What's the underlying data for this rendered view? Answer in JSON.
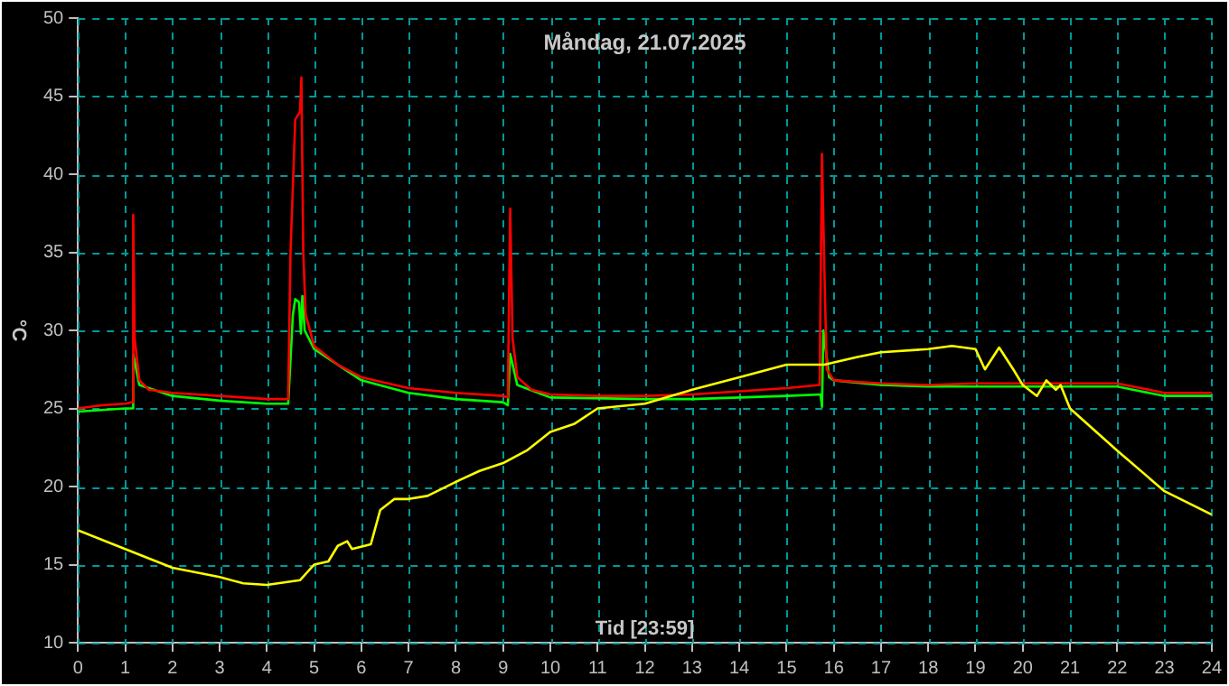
{
  "chart_data": {
    "type": "line",
    "title": "Måndag, 21.07.2025",
    "xlabel": "Tid [23:59]",
    "ylabel": "°C",
    "xlim": [
      0,
      24
    ],
    "xticks": [
      0,
      1,
      2,
      3,
      4,
      5,
      6,
      7,
      8,
      9,
      10,
      11,
      12,
      13,
      14,
      15,
      16,
      17,
      18,
      19,
      20,
      21,
      22,
      23,
      24
    ],
    "ylim": [
      10,
      50
    ],
    "yticks": [
      10,
      15,
      20,
      25,
      30,
      35,
      40,
      45,
      50
    ],
    "grid": true,
    "legend": false,
    "marker": "none",
    "line_style": "solid",
    "series": [
      {
        "color": "#ffff00",
        "x": [
          0,
          1,
          2,
          3,
          3.5,
          4,
          4.7,
          5,
          5.3,
          5.5,
          5.7,
          5.8,
          6.2,
          6.4,
          6.7,
          7,
          7.4,
          8,
          8.5,
          9,
          9.5,
          10,
          10.5,
          11,
          12,
          13,
          14,
          15,
          15.8,
          16.5,
          17,
          18,
          18.5,
          19,
          19.2,
          19.5,
          19.8,
          20,
          20.3,
          20.5,
          20.7,
          20.8,
          21,
          22,
          23,
          24
        ],
        "values": [
          17.2,
          16,
          14.8,
          14.2,
          13.8,
          13.7,
          14,
          15,
          15.2,
          16.2,
          16.5,
          16,
          16.3,
          18.5,
          19.2,
          19.2,
          19.4,
          20.3,
          21,
          21.5,
          22.3,
          23.5,
          24,
          25,
          25.3,
          26.2,
          27,
          27.8,
          27.8,
          28.3,
          28.6,
          28.8,
          29,
          28.8,
          27.5,
          28.9,
          27.5,
          26.5,
          25.8,
          26.8,
          26.2,
          26.5,
          25,
          22.3,
          19.7,
          18.2
        ]
      },
      {
        "color": "#ff0000",
        "x": [
          0,
          0.5,
          1,
          1.15,
          1.17,
          1.2,
          1.3,
          1.5,
          2,
          3,
          4,
          4.45,
          4.5,
          4.6,
          4.7,
          4.73,
          4.77,
          4.82,
          5,
          5.5,
          6,
          7,
          8,
          9,
          9.1,
          9.15,
          9.2,
          9.3,
          9.6,
          10,
          11,
          12,
          13,
          14,
          15,
          15.7,
          15.75,
          15.8,
          15.85,
          16,
          17,
          18,
          19,
          20,
          21,
          22,
          22.5,
          23,
          24
        ],
        "values": [
          25,
          25.2,
          25.3,
          25.4,
          37.4,
          29.5,
          26.8,
          26.2,
          26,
          25.8,
          25.6,
          25.6,
          35,
          43.5,
          44,
          46.2,
          35,
          31,
          29,
          27.8,
          27,
          26.3,
          26,
          25.8,
          25.7,
          37.8,
          29.5,
          27,
          26.2,
          25.9,
          25.8,
          25.8,
          25.9,
          26.1,
          26.3,
          26.5,
          41.3,
          34,
          27.5,
          26.8,
          26.6,
          26.5,
          26.6,
          26.6,
          26.6,
          26.6,
          26.3,
          26,
          26
        ]
      },
      {
        "color": "#00ff00",
        "x": [
          0,
          1,
          1.15,
          1.17,
          1.3,
          2,
          3,
          4,
          4.45,
          4.55,
          4.6,
          4.68,
          4.72,
          4.75,
          4.8,
          5,
          6,
          7,
          8,
          9,
          9.1,
          9.15,
          9.3,
          10,
          12,
          13,
          14,
          15,
          15.72,
          15.75,
          15.78,
          15.9,
          16,
          17,
          18,
          20,
          22,
          22.5,
          23,
          24
        ],
        "values": [
          24.8,
          25,
          25,
          28.5,
          26.5,
          25.8,
          25.5,
          25.3,
          25.3,
          31,
          32,
          31.8,
          29.8,
          32.2,
          30,
          28.8,
          26.8,
          26,
          25.6,
          25.4,
          25.2,
          28.5,
          26.5,
          25.7,
          25.6,
          25.6,
          25.7,
          25.8,
          25.9,
          25.1,
          30,
          27,
          26.8,
          26.5,
          26.4,
          26.4,
          26.4,
          26.1,
          25.8,
          25.8
        ]
      }
    ]
  }
}
